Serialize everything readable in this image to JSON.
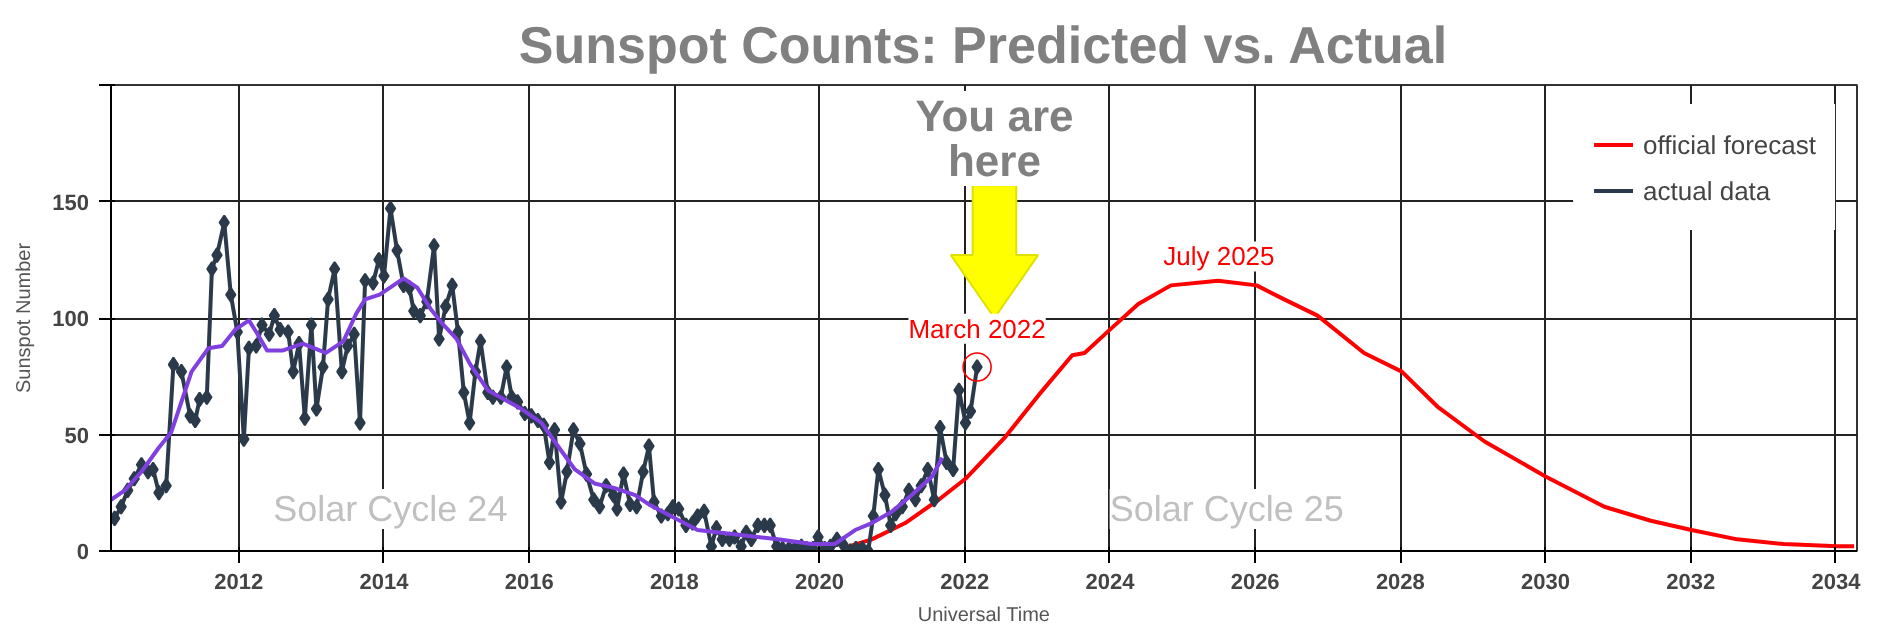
{
  "chart_data": {
    "type": "line",
    "title": "Sunspot Counts: Predicted vs. Actual",
    "xlabel": "Universal Time",
    "ylabel": "Sunspot Number",
    "xlim": [
      2010.24,
      2034.29
    ],
    "ylim": [
      0,
      200
    ],
    "xticks": [
      2012,
      2014,
      2016,
      2018,
      2020,
      2022,
      2024,
      2026,
      2028,
      2030,
      2032,
      2034
    ],
    "yticks": [
      0,
      50,
      100,
      150,
      {
        "value": 200,
        "label": null
      }
    ],
    "grid": true,
    "legend": "top right",
    "line_style": "solid",
    "series": [
      {
        "name": "official forecast",
        "color": "#ff0000",
        "marker": "none",
        "x": [
          2020.3,
          2020.72,
          2021.18,
          2021.64,
          2022.01,
          2022.56,
          2023.02,
          2023.48,
          2023.65,
          2024.0,
          2024.39,
          2024.84,
          2025.49,
          2026.02,
          2026.4,
          2026.86,
          2027.5,
          2028.02,
          2028.51,
          2029.16,
          2030.0,
          2030.81,
          2031.45,
          2032.01,
          2032.64,
          2033.28,
          2034.02,
          2034.25
        ],
        "values": [
          1,
          5,
          12,
          22,
          31,
          49,
          67,
          84,
          85,
          95,
          106,
          114,
          116,
          114,
          108,
          101,
          85,
          77,
          62,
          47,
          32,
          19,
          13,
          9,
          5,
          3,
          2,
          2
        ]
      },
      {
        "name": "actual data",
        "color": "#2b3a4a",
        "marker": "diamond",
        "x": [
          2010.29,
          2010.38,
          2010.47,
          2010.56,
          2010.66,
          2010.75,
          2010.82,
          2010.9,
          2011.0,
          2011.1,
          2011.21,
          2011.33,
          2011.4,
          2011.46,
          2011.56,
          2011.63,
          2011.7,
          2011.8,
          2011.89,
          2011.98,
          2012.07,
          2012.14,
          2012.24,
          2012.32,
          2012.42,
          2012.49,
          2012.57,
          2012.68,
          2012.75,
          2012.83,
          2012.91,
          2013.0,
          2013.07,
          2013.16,
          2013.23,
          2013.32,
          2013.42,
          2013.5,
          2013.59,
          2013.67,
          2013.74,
          2013.85,
          2013.93,
          2014.0,
          2014.09,
          2014.18,
          2014.27,
          2014.35,
          2014.41,
          2014.5,
          2014.59,
          2014.69,
          2014.76,
          2014.85,
          2014.94,
          2015.02,
          2015.1,
          2015.18,
          2015.26,
          2015.33,
          2015.43,
          2015.5,
          2015.61,
          2015.69,
          2015.76,
          2015.84,
          2015.94,
          2016.03,
          2016.12,
          2016.2,
          2016.28,
          2016.35,
          2016.44,
          2016.52,
          2016.61,
          2016.7,
          2016.79,
          2016.89,
          2016.97,
          2017.06,
          2017.16,
          2017.21,
          2017.3,
          2017.39,
          2017.48,
          2017.57,
          2017.65,
          2017.72,
          2017.82,
          2017.91,
          2017.98,
          2018.06,
          2018.16,
          2018.25,
          2018.32,
          2018.41,
          2018.51,
          2018.58,
          2018.66,
          2018.76,
          2018.83,
          2018.92,
          2018.99,
          2019.06,
          2019.15,
          2019.24,
          2019.32,
          2019.41,
          2019.49,
          2019.58,
          2019.66,
          2019.75,
          2019.82,
          2019.91,
          2019.98,
          2020.07,
          2020.15,
          2020.24,
          2020.32,
          2020.42,
          2020.5,
          2020.59,
          2020.67,
          2020.74,
          2020.81,
          2020.9,
          2020.98,
          2021.05,
          2021.14,
          2021.23,
          2021.32,
          2021.4,
          2021.49,
          2021.58,
          2021.66,
          2021.75,
          2021.84,
          2021.92,
          2022.01,
          2022.08,
          2022.17
        ],
        "values": [
          14,
          19,
          26,
          31,
          37,
          34,
          35,
          25,
          28,
          80,
          77,
          58,
          56,
          65,
          66,
          121,
          127,
          141,
          110,
          94,
          48,
          87,
          88,
          97,
          93,
          101,
          95,
          94,
          77,
          89,
          57,
          97,
          61,
          79,
          108,
          121,
          77,
          88,
          93,
          55,
          116,
          115,
          125,
          118,
          147,
          129,
          114,
          113,
          103,
          101,
          107,
          131,
          91,
          105,
          114,
          94,
          68,
          55,
          77,
          90,
          68,
          66,
          66,
          79,
          66,
          64,
          59,
          58,
          56,
          54,
          38,
          52,
          21,
          34,
          52,
          46,
          33,
          22,
          19,
          28,
          24,
          18,
          33,
          20,
          19,
          34,
          45,
          21,
          15,
          16,
          19,
          18,
          11,
          12,
          15,
          17,
          2,
          10,
          5,
          5,
          6,
          2,
          8,
          5,
          11,
          11,
          11,
          2,
          1,
          1,
          1,
          2,
          1,
          1,
          6,
          1,
          2,
          5,
          3,
          0,
          1,
          1,
          0,
          15,
          35,
          24,
          11,
          16,
          19,
          26,
          22,
          28,
          35,
          22,
          53,
          38,
          35,
          69,
          55,
          60,
          79
        ]
      },
      {
        "color": "#8040e0",
        "marker": "none",
        "x": [
          2010.24,
          2010.43,
          2010.66,
          2010.89,
          2011.07,
          2011.35,
          2011.58,
          2011.77,
          2011.95,
          2012.14,
          2012.26,
          2012.39,
          2012.6,
          2012.88,
          2013.2,
          2013.44,
          2013.62,
          2013.74,
          2013.94,
          2014.13,
          2014.27,
          2014.46,
          2014.64,
          2014.82,
          2015.0,
          2015.19,
          2015.43,
          2015.66,
          2015.89,
          2016.17,
          2016.35,
          2016.63,
          2016.9,
          2017.18,
          2017.46,
          2017.65,
          2017.95,
          2018.32,
          2018.88,
          2019.43,
          2019.89,
          2020.21,
          2020.49,
          2020.72,
          2021.0,
          2021.27,
          2021.55,
          2021.69
        ],
        "values": [
          22,
          26,
          34,
          44,
          51,
          77,
          87,
          88,
          95,
          99,
          93,
          86,
          86,
          89,
          85,
          90,
          102,
          108,
          110,
          114,
          117,
          113,
          104,
          97,
          91,
          80,
          69,
          65,
          61,
          55,
          47,
          35,
          29,
          27,
          24,
          20,
          15,
          9,
          7,
          5,
          3,
          3,
          9,
          12,
          17,
          24,
          32,
          40
        ]
      }
    ],
    "annotations": [
      "You are here",
      {
        "text": "March 2022",
        "x": 2022.17,
        "y": 79
      },
      {
        "text": "July 2025",
        "x": 2025.5,
        "y": 116
      },
      "Solar Cycle 24",
      "Solar Cycle 25"
    ]
  }
}
